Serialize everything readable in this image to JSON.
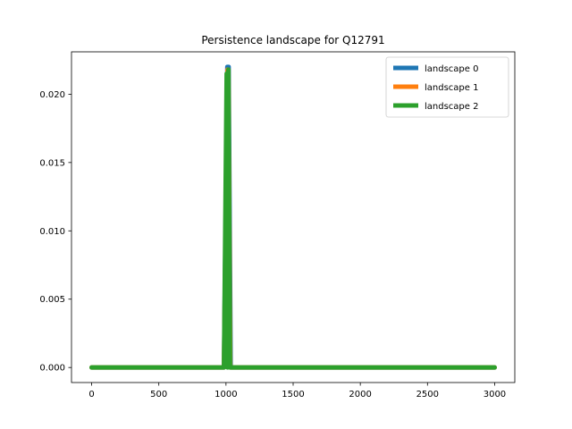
{
  "chart_data": {
    "type": "line",
    "title": "Persistence landscape for Q12791",
    "xlabel": "",
    "ylabel": "",
    "xlim": [
      -150,
      3150
    ],
    "ylim": [
      -0.0011,
      0.0231
    ],
    "xticks": [
      0,
      500,
      1000,
      1500,
      2000,
      2500,
      3000
    ],
    "xtick_labels": [
      "0",
      "500",
      "1000",
      "1500",
      "2000",
      "2500",
      "3000"
    ],
    "yticks": [
      0.0,
      0.005,
      0.01,
      0.015,
      0.02
    ],
    "ytick_labels": [
      "0.000",
      "0.005",
      "0.010",
      "0.015",
      "0.020"
    ],
    "grid": false,
    "legend_position": "top-right",
    "series": [
      {
        "name": "landscape 0",
        "color": "#1f77b4",
        "x": [
          0,
          985,
          1010,
          1020,
          1035,
          1045,
          3000
        ],
        "y": [
          0.0,
          0.0,
          0.022,
          0.022,
          0.0,
          0.0,
          0.0
        ]
      },
      {
        "name": "landscape 1",
        "color": "#ff7f0e",
        "x": [
          0,
          985,
          1012,
          1018,
          1032,
          1045,
          3000
        ],
        "y": [
          0.0,
          0.0,
          0.0218,
          0.0218,
          0.0,
          0.0,
          0.0
        ]
      },
      {
        "name": "landscape 2",
        "color": "#2ca02c",
        "x": [
          0,
          985,
          1005,
          1012,
          1018,
          1030,
          1040,
          3000
        ],
        "y": [
          0.0,
          0.0,
          0.0215,
          0.0,
          0.0218,
          0.0,
          0.0,
          0.0
        ]
      }
    ]
  }
}
